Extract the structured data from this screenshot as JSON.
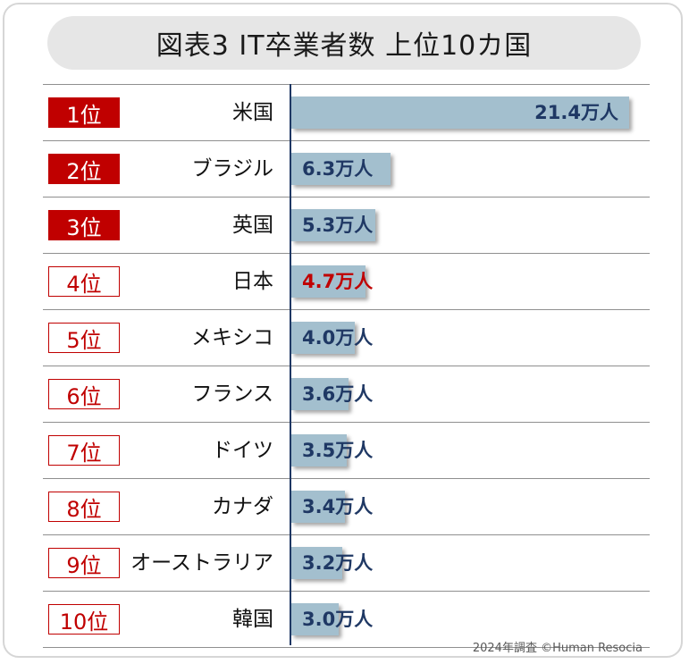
{
  "chart_data": {
    "type": "bar",
    "orientation": "horizontal",
    "title": "図表3  IT卒業者数  上位10カ国",
    "categories": [
      "米国",
      "ブラジル",
      "英国",
      "日本",
      "メキシコ",
      "フランス",
      "ドイツ",
      "カナダ",
      "オーストラリア",
      "韓国"
    ],
    "ranks": [
      "1位",
      "2位",
      "3位",
      "4位",
      "5位",
      "6位",
      "7位",
      "8位",
      "9位",
      "10位"
    ],
    "values": [
      21.4,
      6.3,
      5.3,
      4.7,
      4.0,
      3.6,
      3.5,
      3.4,
      3.2,
      3.0
    ],
    "value_labels": [
      "21.4万人",
      "6.3万人",
      "5.3万人",
      "4.7万人",
      "4.0万人",
      "3.6万人",
      "3.5万人",
      "3.4万人",
      "3.2万人",
      "3.0万人"
    ],
    "unit": "万人",
    "xlim": [
      0,
      21.4
    ],
    "highlight_category": "日本",
    "colors": {
      "bar": "#a3bfce",
      "value_text": "#1f3864",
      "highlight": "#c00000",
      "rank_fill": "#c00000"
    }
  },
  "footer": "2024年調査 ©Human Resocia"
}
